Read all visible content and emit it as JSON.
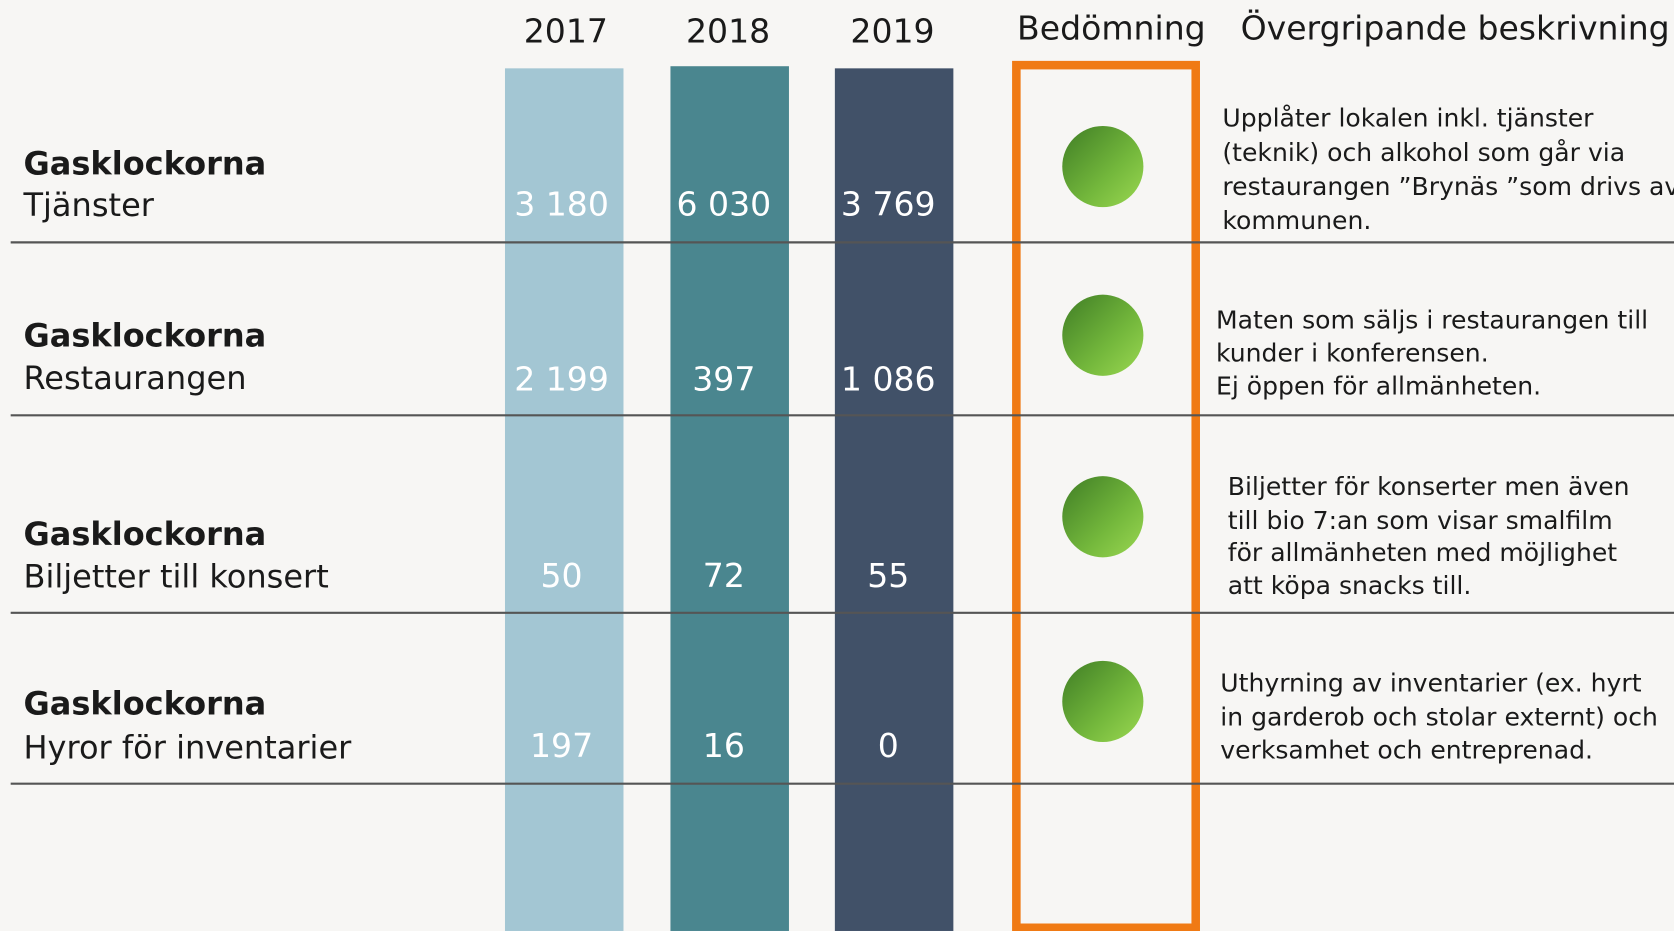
{
  "header": {
    "years": [
      "2017",
      "2018",
      "2019"
    ],
    "assessment": "Bedömning",
    "description": "Övergripande beskrivning"
  },
  "rows": [
    {
      "name": "Gasklockorna",
      "subtitle": "Tjänster",
      "values": [
        "3 180",
        "6 030",
        "3 769"
      ],
      "description": [
        "Upplåter lokalen inkl. tjänster",
        "(teknik) och alkohol som går via",
        "restaurangen ”Brynäs ”som drivs av",
        "kommunen."
      ]
    },
    {
      "name": "Gasklockorna",
      "subtitle": "Restaurangen",
      "values": [
        "2 199",
        "397",
        "1 086"
      ],
      "description": [
        "Maten som säljs i restaurangen till",
        "kunder i konferensen.",
        "Ej öppen för allmänheten."
      ]
    },
    {
      "name": "Gasklockorna",
      "subtitle": "Biljetter till konsert",
      "values": [
        "50",
        "72",
        "55"
      ],
      "description": [
        "Biljetter för konserter men även",
        "till bio 7:an som visar smalfilm",
        "för allmänheten med möjlighet",
        "att köpa snacks till."
      ]
    },
    {
      "name": "Gasklockorna",
      "subtitle": "Hyror för inventarier",
      "values": [
        "197",
        "16",
        "0"
      ],
      "description": [
        "Uthyrning av inventarier (ex. hyrt",
        "in garderob och stolar externt) och",
        "verksamhet och entreprenad."
      ]
    }
  ]
}
